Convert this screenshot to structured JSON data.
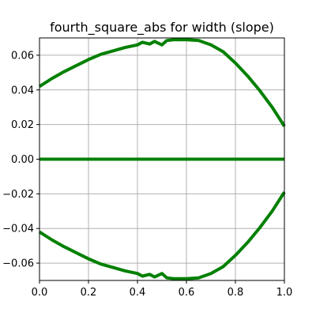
{
  "chart_data": {
    "type": "line",
    "title": "fourth_square_abs for width (slope)",
    "xlabel": "",
    "ylabel": "",
    "xlim": [
      0.0,
      1.0
    ],
    "ylim": [
      -0.07,
      0.07
    ],
    "grid": true,
    "x_ticks": [
      {
        "value": 0.0,
        "label": "0.0"
      },
      {
        "value": 0.2,
        "label": "0.2"
      },
      {
        "value": 0.4,
        "label": "0.4"
      },
      {
        "value": 0.6,
        "label": "0.6"
      },
      {
        "value": 0.8,
        "label": "0.8"
      },
      {
        "value": 1.0,
        "label": "1.0"
      }
    ],
    "y_ticks": [
      {
        "value": -0.06,
        "label": "−0.06"
      },
      {
        "value": -0.04,
        "label": "−0.04"
      },
      {
        "value": -0.02,
        "label": "−0.02"
      },
      {
        "value": 0.0,
        "label": "0.00"
      },
      {
        "value": 0.02,
        "label": "0.02"
      },
      {
        "value": 0.04,
        "label": "0.04"
      },
      {
        "value": 0.06,
        "label": "0.06"
      }
    ],
    "colors": {
      "series": "#008000",
      "grid": "#b0b0b0",
      "axes": "#000000"
    },
    "series": [
      {
        "x": [
          0.0,
          0.05,
          0.1,
          0.15,
          0.2,
          0.25,
          0.3,
          0.35,
          0.4,
          0.42,
          0.45,
          0.47,
          0.5,
          0.52,
          0.55,
          0.6,
          0.65,
          0.7,
          0.75,
          0.8,
          0.85,
          0.9,
          0.95,
          1.0
        ],
        "y": [
          0.042,
          0.0465,
          0.0505,
          0.054,
          0.0575,
          0.0605,
          0.0625,
          0.0645,
          0.066,
          0.0675,
          0.0665,
          0.068,
          0.066,
          0.0685,
          0.069,
          0.069,
          0.0685,
          0.066,
          0.062,
          0.0555,
          0.048,
          0.0395,
          0.03,
          0.019
        ]
      },
      {
        "x": [
          0.0,
          1.0
        ],
        "y": [
          0.0,
          0.0
        ]
      },
      {
        "x": [
          0.0,
          0.05,
          0.1,
          0.15,
          0.2,
          0.25,
          0.3,
          0.35,
          0.4,
          0.42,
          0.45,
          0.47,
          0.5,
          0.52,
          0.55,
          0.6,
          0.65,
          0.7,
          0.75,
          0.8,
          0.85,
          0.9,
          0.95,
          1.0
        ],
        "y": [
          -0.042,
          -0.0465,
          -0.0505,
          -0.054,
          -0.0575,
          -0.0605,
          -0.0625,
          -0.0645,
          -0.066,
          -0.0675,
          -0.0665,
          -0.068,
          -0.066,
          -0.0685,
          -0.069,
          -0.069,
          -0.0685,
          -0.066,
          -0.062,
          -0.0555,
          -0.048,
          -0.0395,
          -0.03,
          -0.019
        ]
      }
    ]
  }
}
